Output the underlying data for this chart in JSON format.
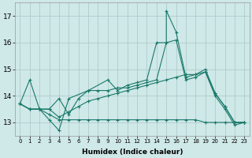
{
  "xlabel": "Humidex (Indice chaleur)",
  "bg_color": "#cfe8e8",
  "grid_color": "#b0cccc",
  "line_color": "#1a7a6a",
  "xlim": [
    -0.5,
    23.5
  ],
  "ylim": [
    12.5,
    17.5
  ],
  "yticks": [
    13,
    14,
    15,
    16,
    17
  ],
  "xticks": [
    0,
    1,
    2,
    3,
    4,
    5,
    6,
    7,
    8,
    9,
    10,
    11,
    12,
    13,
    14,
    15,
    16,
    17,
    18,
    19,
    20,
    21,
    22,
    23
  ],
  "multi_lines": [
    {
      "x": [
        0,
        1,
        2,
        3,
        4,
        5,
        7,
        9,
        10,
        11,
        12,
        13,
        14,
        15,
        15,
        16,
        17,
        18,
        19,
        20,
        21,
        22,
        23
      ],
      "y": [
        13.7,
        14.6,
        13.5,
        13.1,
        12.7,
        13.9,
        14.2,
        14.6,
        14.2,
        14.4,
        14.5,
        14.6,
        16.0,
        16.0,
        17.2,
        16.4,
        14.7,
        14.8,
        15.0,
        14.1,
        13.6,
        13.0,
        13.0
      ]
    },
    {
      "x": [
        0,
        1,
        2,
        3,
        4,
        5,
        6,
        7,
        8,
        9,
        10,
        11,
        12,
        13,
        14,
        15,
        16,
        17,
        18,
        19,
        20,
        21,
        22,
        23
      ],
      "y": [
        13.7,
        13.5,
        13.5,
        13.5,
        13.9,
        13.3,
        13.9,
        14.2,
        14.2,
        14.2,
        14.3,
        14.3,
        14.4,
        14.5,
        14.6,
        16.0,
        16.1,
        14.6,
        14.7,
        14.9,
        14.0,
        13.5,
        12.9,
        13.0
      ]
    },
    {
      "x": [
        0,
        1,
        2,
        3,
        4,
        5,
        6,
        7,
        8,
        9,
        10,
        11,
        12,
        13,
        14,
        15,
        16,
        17,
        18,
        19,
        20,
        21,
        22,
        23
      ],
      "y": [
        13.7,
        13.5,
        13.5,
        13.5,
        13.2,
        13.4,
        13.6,
        13.8,
        13.9,
        14.0,
        14.1,
        14.2,
        14.3,
        14.4,
        14.5,
        14.6,
        14.7,
        14.8,
        14.8,
        14.9,
        14.1,
        13.6,
        13.0,
        13.0
      ]
    },
    {
      "x": [
        0,
        1,
        2,
        3,
        4,
        5,
        6,
        7,
        8,
        9,
        10,
        11,
        12,
        13,
        14,
        15,
        16,
        17,
        18,
        19,
        20,
        21,
        22,
        23
      ],
      "y": [
        13.7,
        13.5,
        13.5,
        13.3,
        13.1,
        13.1,
        13.1,
        13.1,
        13.1,
        13.1,
        13.1,
        13.1,
        13.1,
        13.1,
        13.1,
        13.1,
        13.1,
        13.1,
        13.1,
        13.0,
        13.0,
        13.0,
        13.0,
        13.0
      ]
    }
  ]
}
